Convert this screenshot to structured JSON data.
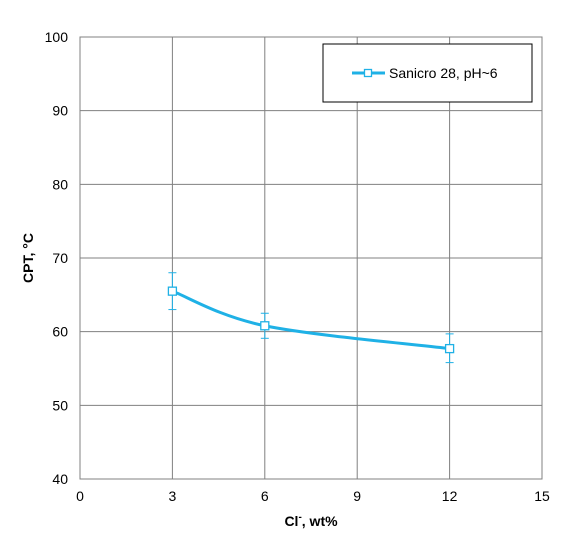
{
  "chart_data": {
    "type": "line",
    "title": "",
    "xlabel": {
      "main": "Cl",
      "superscript": "-",
      "suffix": ", wt%"
    },
    "ylabel": "CPT, °C",
    "xlim": [
      0,
      15
    ],
    "ylim": [
      40,
      100
    ],
    "x_ticks": [
      "0",
      "3",
      "6",
      "9",
      "12",
      "15"
    ],
    "y_ticks": [
      "40",
      "50",
      "60",
      "70",
      "80",
      "90",
      "100"
    ],
    "grid": true,
    "legend_position": "top-right",
    "series": [
      {
        "name": "Sanicro 28, pH~6",
        "color": "#1fb1e6",
        "marker": "open-square",
        "smooth": true,
        "x": [
          3,
          6,
          12
        ],
        "y": [
          65.5,
          60.8,
          57.7
        ],
        "error_low": [
          63.0,
          59.1,
          55.8
        ],
        "error_high": [
          68.0,
          62.5,
          59.7
        ]
      }
    ]
  }
}
